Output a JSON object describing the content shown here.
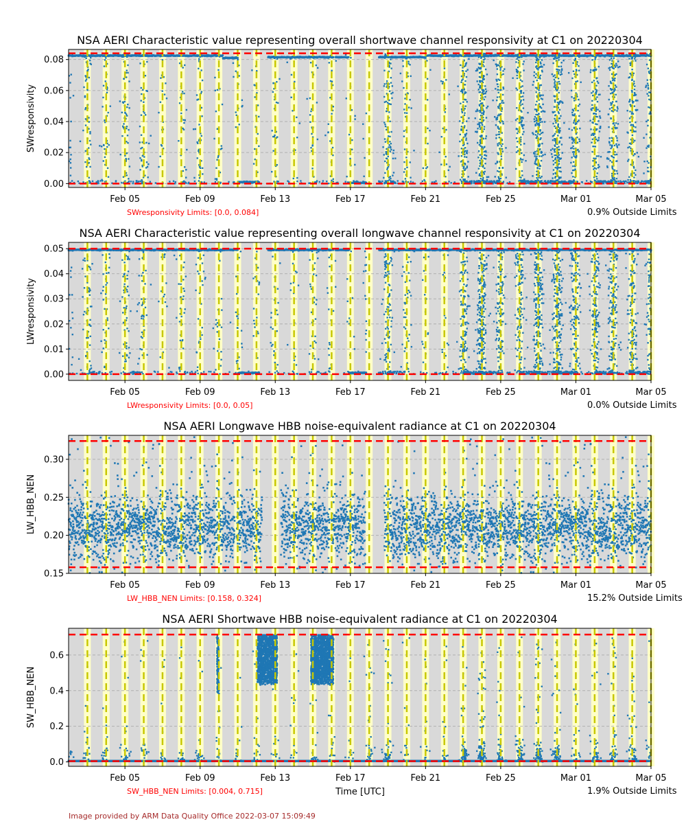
{
  "x_axis": {
    "label": "Time [UTC]",
    "range": [
      "2022-02-02",
      "2022-03-05"
    ],
    "tick_labels": [
      "Feb 05",
      "Feb 09",
      "Feb 13",
      "Feb 17",
      "Feb 21",
      "Feb 25",
      "Mar 01",
      "Mar 05"
    ],
    "tick_days": [
      3,
      7,
      11,
      15,
      19,
      23,
      27,
      31
    ],
    "daily_marker_days": [
      1,
      2,
      3,
      4,
      5,
      6,
      7,
      8,
      9,
      10,
      11,
      12,
      13,
      14,
      15,
      16,
      17,
      18,
      19,
      20,
      21,
      22,
      23,
      24,
      25,
      26,
      27,
      28,
      29,
      30,
      31
    ]
  },
  "colors": {
    "data": "#1f77b4",
    "limit_line": "#ff0000",
    "day_marker": "#c8c800",
    "day_band": "#ffffc8",
    "background": "#d9d9d9",
    "footer": "#a52a2a"
  },
  "footer": "Image provided by ARM Data Quality Office 2022-03-07 15:09:49",
  "chart_data": [
    {
      "type": "scatter",
      "title": "NSA AERI Characteristic value representing overall shortwave channel responsivity at C1 on 20220304",
      "ylabel": "SWresponsivity",
      "xlabel": "",
      "ylim": [
        -0.0025,
        0.0865
      ],
      "yticks": [
        0.0,
        0.02,
        0.04,
        0.06,
        0.08
      ],
      "ytick_labels": [
        "0.00",
        "0.02",
        "0.04",
        "0.06",
        "0.08"
      ],
      "limits": [
        0.0,
        0.084
      ],
      "limits_text": "SWresponsivity Limits: [0.0, 0.084]",
      "outside_text": "0.9% Outside Limits",
      "baseline": 0.0825,
      "pattern": "responsivity",
      "low_segments": [
        [
          8.2,
          9.0,
          0.081
        ],
        [
          9.0,
          10.5,
          0.001
        ],
        [
          10.5,
          13.2,
          0.0815
        ],
        [
          13.2,
          14.9,
          0.0815
        ],
        [
          14.9,
          16.0,
          0.0005
        ],
        [
          16.5,
          19.0,
          0.0815
        ]
      ],
      "gaps": [
        [
          10.15,
          10.6
        ],
        [
          14.1,
          14.2
        ],
        [
          15.85,
          16.5
        ]
      ],
      "scatter_density": [
        0.5,
        1.2,
        0.3,
        1.5,
        0.2,
        0.3,
        0.8,
        0.4,
        0.3,
        0.3,
        0.5,
        0.3,
        0.3,
        0.6,
        0.3,
        0.3,
        2.5,
        1.2,
        0.3,
        0.3,
        0.3,
        4.0,
        4.0,
        0.3,
        4.0,
        3.0,
        4.0,
        0.5,
        4.0,
        1.5,
        3.0
      ]
    },
    {
      "type": "scatter",
      "title": "NSA AERI Characteristic value representing overall longwave channel responsivity at C1 on 20220304",
      "ylabel": "LWresponsivity",
      "xlabel": "",
      "ylim": [
        -0.0025,
        0.0525
      ],
      "yticks": [
        0.0,
        0.01,
        0.02,
        0.03,
        0.04,
        0.05
      ],
      "ytick_labels": [
        "0.00",
        "0.01",
        "0.02",
        "0.03",
        "0.04",
        "0.05"
      ],
      "limits": [
        0.0,
        0.05
      ],
      "limits_text": "LWresponsivity Limits: [0.0, 0.05]",
      "outside_text": "0.0% Outside Limits",
      "baseline": 0.0495,
      "pattern": "responsivity",
      "low_segments": [
        [
          8.2,
          9.0,
          0.0495
        ],
        [
          9.0,
          10.5,
          0.0005
        ],
        [
          14.9,
          16.0,
          0.0005
        ]
      ],
      "gaps": [
        [
          10.15,
          10.6
        ],
        [
          14.1,
          14.2
        ],
        [
          15.85,
          16.5
        ]
      ],
      "scatter_density": [
        0.5,
        1.2,
        0.3,
        1.5,
        0.2,
        0.3,
        0.8,
        0.4,
        0.3,
        0.3,
        0.5,
        0.3,
        0.3,
        0.6,
        0.3,
        0.3,
        2.5,
        1.2,
        0.3,
        0.3,
        0.3,
        4.0,
        4.0,
        0.3,
        4.0,
        3.0,
        4.0,
        0.5,
        4.0,
        1.5,
        3.0
      ]
    },
    {
      "type": "scatter",
      "title": "NSA AERI Longwave HBB noise-equivalent radiance at C1 on 20220304",
      "ylabel": "LW_HBB_NEN",
      "xlabel": "",
      "ylim": [
        0.15,
        0.3315
      ],
      "yticks": [
        0.15,
        0.2,
        0.25,
        0.3
      ],
      "ytick_labels": [
        "0.15",
        "0.20",
        "0.25",
        "0.30"
      ],
      "limits": [
        0.158,
        0.324
      ],
      "limits_text": "LW_HBB_NEN Limits: [0.158, 0.324]",
      "outside_text": "15.2% Outside Limits",
      "pattern": "noise",
      "center": 0.21,
      "spread": 0.022,
      "gaps": [
        [
          8.0,
          8.05
        ],
        [
          8.85,
          8.95
        ],
        [
          10.3,
          11.3
        ],
        [
          13.9,
          14.0
        ],
        [
          15.8,
          16.8
        ]
      ]
    },
    {
      "type": "scatter",
      "title": "NSA AERI Shortwave HBB noise-equivalent radiance at C1 on 20220304",
      "ylabel": "SW_HBB_NEN",
      "xlabel": "Time [UTC]",
      "ylim": [
        -0.025,
        0.75
      ],
      "yticks": [
        0.0,
        0.2,
        0.4,
        0.6
      ],
      "ytick_labels": [
        "0.0",
        "0.2",
        "0.4",
        "0.6"
      ],
      "limits": [
        0.004,
        0.715
      ],
      "limits_text": "SW_HBB_NEN Limits: [0.004, 0.715]",
      "outside_text": "1.9% Outside Limits",
      "pattern": "swnen",
      "baseline": 0.005,
      "blocks": [
        [
          7.9,
          8.0,
          0.38
        ],
        [
          10.05,
          11.1,
          0.43
        ],
        [
          12.9,
          14.1,
          0.43
        ]
      ],
      "scatter_density": [
        0.3,
        0.6,
        0.3,
        0.8,
        0.2,
        0.3,
        0.6,
        0.4,
        0.3,
        0.3,
        0.5,
        0.3,
        0.3,
        0.6,
        0.3,
        0.3,
        1.5,
        0.8,
        0.3,
        0.3,
        0.3,
        2.5,
        2.0,
        0.3,
        2.0,
        2.0,
        0.8,
        0.5,
        1.5,
        0.6,
        1.2
      ]
    }
  ]
}
